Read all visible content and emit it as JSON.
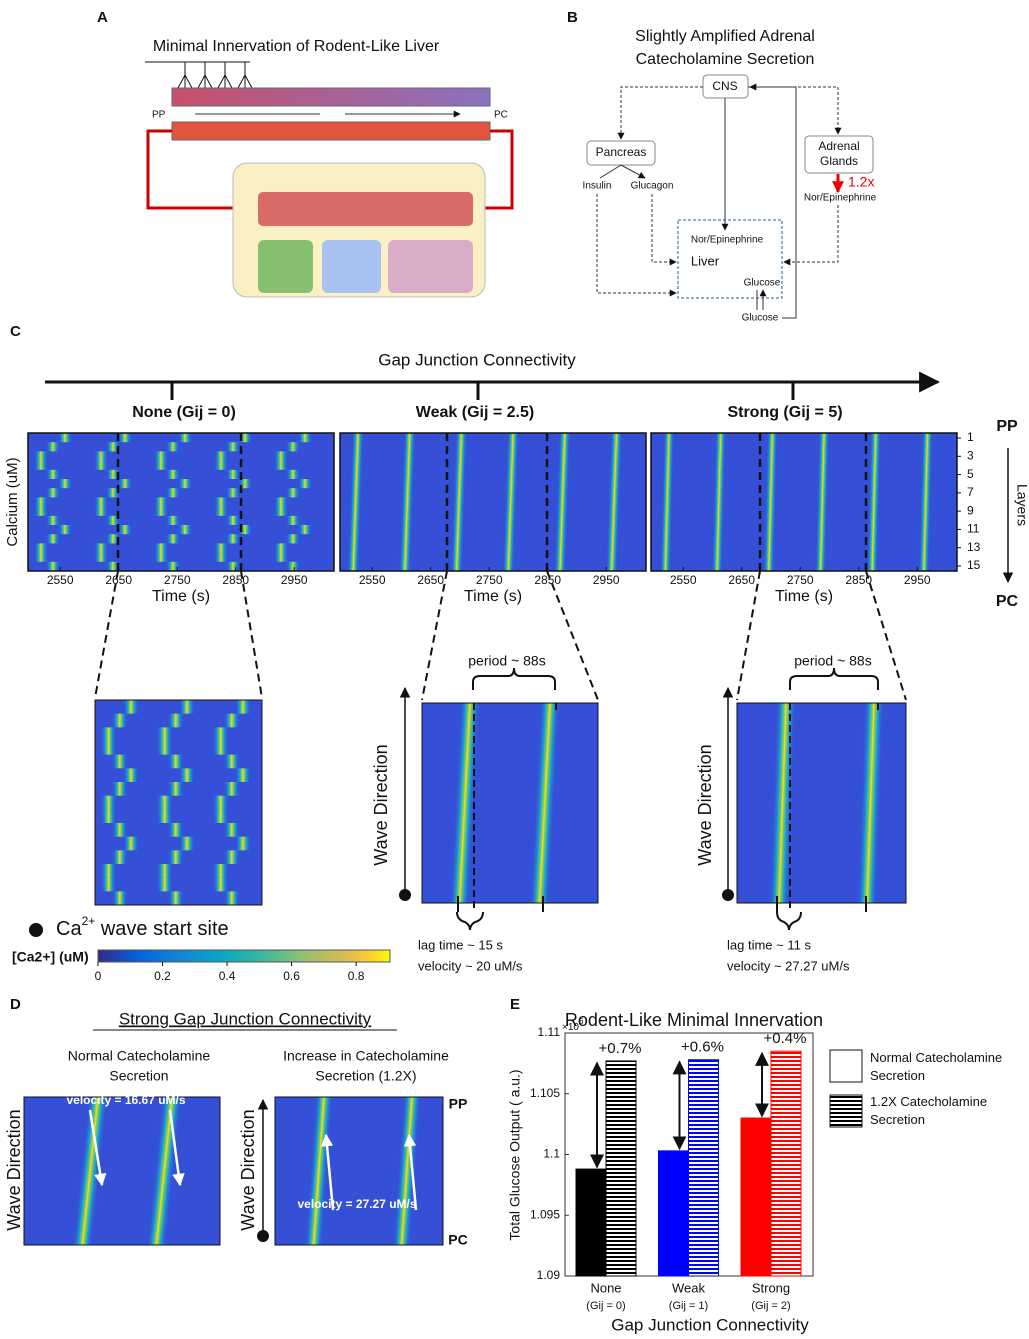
{
  "panel_labels": [
    "A",
    "B",
    "C",
    "D",
    "E"
  ],
  "panel_a": {
    "title": "Minimal Innervation of Rodent-Like Liver",
    "pp": "PP",
    "pc": "PC"
  },
  "panel_b": {
    "title_lines": [
      "Slightly Amplified Adrenal",
      "Catecholamine Secretion"
    ],
    "cns": "CNS",
    "pancreas": "Pancreas",
    "insulin": "Insulin",
    "glucagon": "Glucagon",
    "adrenal_lines": [
      "Adrenal",
      "Glands"
    ],
    "amplification": "1.2x",
    "adrenal_output": "Nor/Epinephrine",
    "liver_input": "Nor/Epinephrine",
    "liver": "Liver",
    "glucose_in": "Glucose",
    "glucose_out": "Glucose"
  },
  "panel_c": {
    "axis_title": "Gap Junction Connectivity",
    "heatmaps": [
      {
        "title": "None (Gij = 0)"
      },
      {
        "title": "Weak (Gij = 2.5)"
      },
      {
        "title": "Strong (Gij = 5)"
      }
    ],
    "ylabel": "Calcium (uM)",
    "xlabel": "Time (s)",
    "xlim": [
      2495,
      3018
    ],
    "xticks": [
      2550,
      2650,
      2750,
      2850,
      2950
    ],
    "layer_lim": [
      0.45,
      15.55
    ],
    "layer_ticks": [
      1,
      3,
      5,
      7,
      9,
      11,
      13,
      15
    ],
    "layer_top": "PP",
    "layer_bottom": "PC",
    "layer_label": "Layers",
    "zoom": [
      {
        "period": "period ~ 88s",
        "lag": "lag time ~ 15 s",
        "velocity": "velocity ~ 20 uM/s"
      },
      {
        "period": "period ~ 88s",
        "lag": "lag time ~ 11 s",
        "velocity": "velocity ~ 27.27 uM/s"
      }
    ],
    "wave_direction": "Wave Direction",
    "start_site": {
      "base": "Ca",
      "sup": "2+",
      "rest": " wave start site"
    },
    "colorbar": {
      "label": "[Ca2+] (uM)",
      "lim": [
        0,
        0.905
      ],
      "ticks": [
        0,
        0.2,
        0.4,
        0.6,
        0.8
      ]
    }
  },
  "panel_d": {
    "title": "Strong Gap Junction Connectivity",
    "subtitles": [
      [
        "Normal Catecholamine",
        "Secretion"
      ],
      [
        "Increase in Catecholamine",
        "Secretion (1.2X)"
      ]
    ],
    "velocities": [
      "velocity = 16.67 uM/s",
      "velocity = 27.27 uM/s"
    ],
    "wave_direction": "Wave Direction",
    "pp": "PP",
    "pc": "PC"
  },
  "chart_data": {
    "type": "bar",
    "title": "Rodent-Like Minimal Innervation",
    "ylabel": "Total Glucose Output ( a.u.)",
    "xlabel": "Gap Junction Connectivity",
    "y_multiplier": {
      "base": "×10",
      "exp": "6"
    },
    "categories": [
      "None",
      "Weak",
      "Strong"
    ],
    "category_sublabels": [
      "(Gij = 0)",
      "(Gij = 1)",
      "(Gij = 2)"
    ],
    "colors": [
      "#000000",
      "#0000ff",
      "#ff0000"
    ],
    "series": [
      {
        "name": "Normal Catecholamine Secretion",
        "pattern": "solid",
        "values": [
          1.0988,
          1.1003,
          1.103
        ]
      },
      {
        "name": "1.2X Catecholamine Secretion",
        "pattern": "horizontal-hatch",
        "values": [
          1.1077,
          1.1078,
          1.1085
        ]
      }
    ],
    "annotations": [
      "+0.7%",
      "+0.6%",
      "+0.4%"
    ],
    "ylim": [
      1.09,
      1.11
    ],
    "yticks": [
      1.09,
      1.095,
      1.1,
      1.105,
      1.11
    ]
  }
}
